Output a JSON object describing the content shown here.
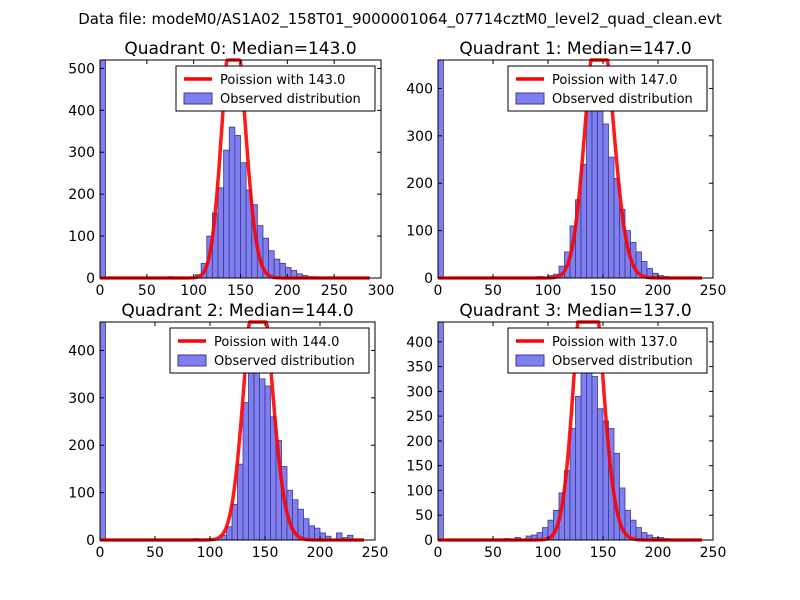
{
  "figure": {
    "suptitle": "Data file: modeM0/AS1A02_158T01_9000001064_07714cztM0_level2_quad_clean.evt"
  },
  "colors": {
    "bar_fill": "#7f7ff0",
    "bar_edge": "#3b3b8c",
    "fit_line": "#ff0000",
    "axis": "#000000"
  },
  "chart_data": [
    {
      "type": "bar",
      "title": "Quadrant 0: Median=143.0",
      "xlim": [
        0,
        300
      ],
      "ylim": [
        0,
        520
      ],
      "xticks": [
        0,
        50,
        100,
        150,
        200,
        250,
        300
      ],
      "yticks": [
        0,
        100,
        200,
        300,
        400,
        500
      ],
      "legend": [
        "Poission with 143.0",
        "Observed distribution"
      ],
      "legend_loc": "upper right",
      "mean": 143.0,
      "bin_width": 6.0,
      "bins": [
        [
          0,
          6,
          520
        ],
        [
          72,
          78,
          3
        ],
        [
          84,
          90,
          2
        ],
        [
          102,
          108,
          8
        ],
        [
          108,
          114,
          35
        ],
        [
          114,
          120,
          100
        ],
        [
          120,
          126,
          155
        ],
        [
          126,
          132,
          215
        ],
        [
          132,
          138,
          305
        ],
        [
          138,
          144,
          360
        ],
        [
          144,
          150,
          340
        ],
        [
          150,
          156,
          275
        ],
        [
          156,
          162,
          210
        ],
        [
          162,
          168,
          175
        ],
        [
          168,
          174,
          125
        ],
        [
          174,
          180,
          95
        ],
        [
          180,
          186,
          65
        ],
        [
          186,
          192,
          45
        ],
        [
          192,
          198,
          35
        ],
        [
          198,
          204,
          25
        ],
        [
          204,
          210,
          18
        ],
        [
          210,
          216,
          10
        ],
        [
          216,
          222,
          6
        ],
        [
          222,
          228,
          3
        ],
        [
          228,
          234,
          2
        ]
      ]
    },
    {
      "type": "bar",
      "title": "Quadrant 1: Median=147.0",
      "xlim": [
        0,
        250
      ],
      "ylim": [
        0,
        460
      ],
      "xticks": [
        0,
        50,
        100,
        150,
        200,
        250
      ],
      "yticks": [
        0,
        100,
        200,
        300,
        400
      ],
      "legend": [
        "Poission with 147.0",
        "Observed distribution"
      ],
      "legend_loc": "upper right",
      "mean": 147.0,
      "bin_width": 5.0,
      "bins": [
        [
          0,
          5,
          460
        ],
        [
          90,
          95,
          3
        ],
        [
          100,
          105,
          5
        ],
        [
          105,
          110,
          8
        ],
        [
          110,
          115,
          25
        ],
        [
          115,
          120,
          55
        ],
        [
          120,
          125,
          110
        ],
        [
          125,
          130,
          165
        ],
        [
          130,
          135,
          240
        ],
        [
          135,
          140,
          355
        ],
        [
          140,
          145,
          375
        ],
        [
          145,
          150,
          405
        ],
        [
          150,
          155,
          325
        ],
        [
          155,
          160,
          255
        ],
        [
          160,
          165,
          210
        ],
        [
          165,
          170,
          145
        ],
        [
          170,
          175,
          100
        ],
        [
          175,
          180,
          75
        ],
        [
          180,
          185,
          55
        ],
        [
          185,
          190,
          35
        ],
        [
          190,
          195,
          20
        ],
        [
          195,
          200,
          10
        ],
        [
          200,
          205,
          5
        ],
        [
          205,
          210,
          3
        ]
      ]
    },
    {
      "type": "bar",
      "title": "Quadrant 2: Median=144.0",
      "xlim": [
        0,
        250
      ],
      "ylim": [
        0,
        460
      ],
      "xticks": [
        0,
        50,
        100,
        150,
        200,
        250
      ],
      "yticks": [
        0,
        100,
        200,
        300,
        400
      ],
      "legend": [
        "Poission with 144.0",
        "Observed distribution"
      ],
      "legend_loc": "upper right",
      "mean": 144.0,
      "bin_width": 5.0,
      "bins": [
        [
          0,
          5,
          460
        ],
        [
          85,
          90,
          3
        ],
        [
          110,
          115,
          10
        ],
        [
          115,
          120,
          28
        ],
        [
          120,
          125,
          75
        ],
        [
          125,
          130,
          160
        ],
        [
          130,
          135,
          290
        ],
        [
          135,
          140,
          355
        ],
        [
          140,
          145,
          400
        ],
        [
          145,
          150,
          340
        ],
        [
          150,
          155,
          325
        ],
        [
          155,
          160,
          260
        ],
        [
          160,
          165,
          210
        ],
        [
          165,
          170,
          155
        ],
        [
          170,
          175,
          105
        ],
        [
          175,
          180,
          85
        ],
        [
          180,
          185,
          65
        ],
        [
          185,
          190,
          45
        ],
        [
          190,
          195,
          30
        ],
        [
          195,
          200,
          25
        ],
        [
          200,
          205,
          15
        ],
        [
          205,
          210,
          8
        ],
        [
          215,
          220,
          15
        ],
        [
          220,
          225,
          5
        ],
        [
          225,
          230,
          10
        ]
      ]
    },
    {
      "type": "bar",
      "title": "Quadrant 3: Median=137.0",
      "xlim": [
        0,
        250
      ],
      "ylim": [
        0,
        440
      ],
      "xticks": [
        0,
        50,
        100,
        150,
        200,
        250
      ],
      "yticks": [
        0,
        50,
        100,
        150,
        200,
        250,
        300,
        350,
        400
      ],
      "legend": [
        "Poission with 137.0",
        "Observed distribution"
      ],
      "legend_loc": "upper right",
      "mean": 137.0,
      "bin_width": 5.0,
      "bins": [
        [
          0,
          5,
          440
        ],
        [
          60,
          65,
          3
        ],
        [
          70,
          75,
          5
        ],
        [
          80,
          85,
          8
        ],
        [
          85,
          90,
          10
        ],
        [
          90,
          95,
          15
        ],
        [
          95,
          100,
          25
        ],
        [
          100,
          105,
          40
        ],
        [
          105,
          110,
          60
        ],
        [
          110,
          115,
          95
        ],
        [
          115,
          120,
          140
        ],
        [
          120,
          125,
          225
        ],
        [
          125,
          130,
          290
        ],
        [
          130,
          135,
          375
        ],
        [
          135,
          140,
          395
        ],
        [
          140,
          145,
          330
        ],
        [
          145,
          150,
          265
        ],
        [
          150,
          155,
          240
        ],
        [
          155,
          160,
          225
        ],
        [
          160,
          165,
          175
        ],
        [
          165,
          170,
          105
        ],
        [
          170,
          175,
          60
        ],
        [
          175,
          180,
          40
        ],
        [
          180,
          185,
          25
        ],
        [
          185,
          190,
          15
        ],
        [
          190,
          195,
          10
        ],
        [
          195,
          200,
          5
        ],
        [
          200,
          205,
          5
        ],
        [
          205,
          210,
          3
        ]
      ]
    }
  ]
}
